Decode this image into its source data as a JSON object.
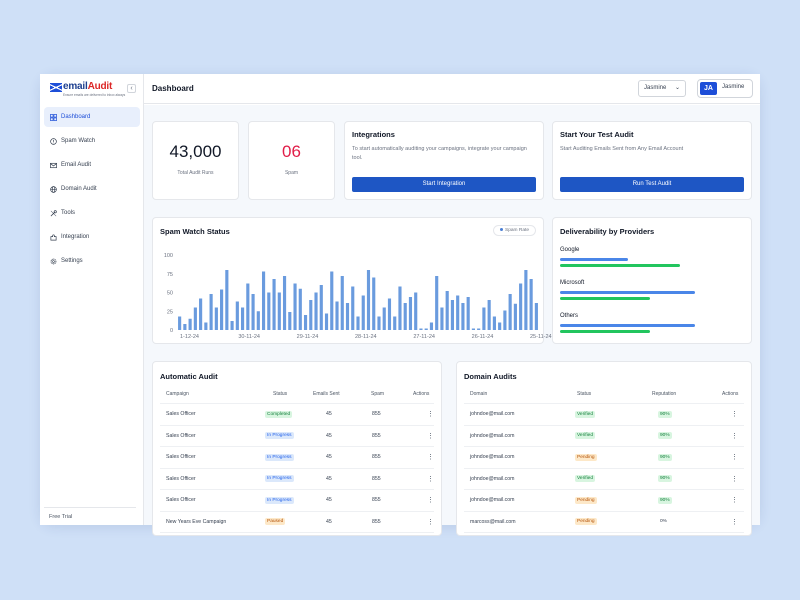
{
  "brand": {
    "name_a": "email",
    "name_b": "Audit",
    "tagline": "Ensure emails are delivered to inbox always"
  },
  "sidebar": {
    "items": [
      {
        "label": "Dashboard",
        "icon": "grid-icon",
        "active": true
      },
      {
        "label": "Spam Watch",
        "icon": "alert-circle-icon"
      },
      {
        "label": "Email Audit",
        "icon": "mail-icon"
      },
      {
        "label": "Domain Audit",
        "icon": "globe-icon"
      },
      {
        "label": "Tools",
        "icon": "tools-icon"
      },
      {
        "label": "Integration",
        "icon": "puzzle-icon"
      },
      {
        "label": "Settings",
        "icon": "gear-icon"
      }
    ],
    "footer": "Free Trial"
  },
  "topbar": {
    "title": "Dashboard",
    "user_select": "Jasmine",
    "avatar_initials": "JA",
    "user_name": "Jasmine"
  },
  "stats": [
    {
      "value": "43,000",
      "label": "Total Audit Runs"
    },
    {
      "value": "06",
      "label": "Spam"
    }
  ],
  "integrations": {
    "title": "Integrations",
    "desc": "To start automatically auditing your campaigns, integrate your campaign tool.",
    "button": "Start Integration"
  },
  "test_audit": {
    "title": "Start Your Test Audit",
    "desc": "Start Auditing Emails Sent from Any Email Account",
    "button": "Run Test Audit"
  },
  "spam_watch": {
    "title": "Spam Watch Status",
    "legend": "Spam Rate"
  },
  "chart_data": {
    "type": "bar",
    "title": "Spam Watch Status",
    "ylim": [
      0,
      100
    ],
    "yticks": [
      0,
      25,
      50,
      75,
      100
    ],
    "xtick_labels": [
      "1-12-24",
      "30-11-24",
      "29-11-24",
      "28-11-24",
      "27-11-24",
      "26-11-24",
      "25-11-24"
    ],
    "series": [
      {
        "name": "Spam Rate",
        "values": [
          18,
          8,
          15,
          30,
          42,
          10,
          48,
          30,
          54,
          80,
          12,
          38,
          30,
          62,
          48,
          25,
          78,
          50,
          68,
          50,
          72,
          24,
          62,
          55,
          20,
          40,
          50,
          60,
          22,
          78,
          38,
          72,
          36,
          58,
          18,
          46,
          80,
          70,
          18,
          30,
          42,
          18,
          58,
          36,
          44,
          50,
          2,
          2,
          10,
          72,
          30,
          52,
          40,
          46,
          36,
          44,
          2,
          2,
          30,
          40,
          18,
          10,
          26,
          48,
          35,
          62,
          80,
          68,
          36
        ]
      }
    ],
    "color": "#6a9bde"
  },
  "deliverability": {
    "title": "Deliverability by Providers",
    "providers": [
      {
        "name": "Google",
        "values": [
          0.45,
          0.8
        ]
      },
      {
        "name": "Microsoft",
        "values": [
          0.9,
          0.6
        ]
      },
      {
        "name": "Others",
        "values": [
          0.9,
          0.6
        ]
      }
    ],
    "colors": [
      "#4a86e8",
      "#22c55e"
    ]
  },
  "automatic_audit": {
    "title": "Automatic Audit",
    "headers": [
      "Campaign",
      "Status",
      "Emails Sent",
      "Spam",
      "Actions"
    ],
    "rows": [
      {
        "campaign": "Sales Officer",
        "status": "Completed",
        "tone": "green",
        "sent": "45",
        "spam": "855"
      },
      {
        "campaign": "Sales Officer",
        "status": "In Progress",
        "tone": "blue",
        "sent": "45",
        "spam": "855"
      },
      {
        "campaign": "Sales Officer",
        "status": "In Progress",
        "tone": "blue",
        "sent": "45",
        "spam": "855"
      },
      {
        "campaign": "Sales Officer",
        "status": "In Progress",
        "tone": "blue",
        "sent": "45",
        "spam": "855"
      },
      {
        "campaign": "Sales Officer",
        "status": "In Progress",
        "tone": "blue",
        "sent": "45",
        "spam": "855"
      },
      {
        "campaign": "New Years Eve Campaign",
        "status": "Paused",
        "tone": "orange",
        "sent": "45",
        "spam": "855"
      }
    ]
  },
  "domain_audits": {
    "title": "Domain Audits",
    "headers": [
      "Domain",
      "Status",
      "Reputation",
      "Actions"
    ],
    "rows": [
      {
        "domain": "johndoe@mail.com",
        "status": "Verified",
        "tone": "green",
        "rep": "90%"
      },
      {
        "domain": "johndoe@mail.com",
        "status": "Verified",
        "tone": "green",
        "rep": "90%"
      },
      {
        "domain": "johndoe@mail.com",
        "status": "Pending",
        "tone": "orange",
        "rep": "90%"
      },
      {
        "domain": "johndoe@mail.com",
        "status": "Verified",
        "tone": "green",
        "rep": "90%"
      },
      {
        "domain": "johndoe@mail.com",
        "status": "Pending",
        "tone": "orange",
        "rep": "90%"
      },
      {
        "domain": "marcoss@mail.com",
        "status": "Pending",
        "tone": "orange",
        "rep": "0%"
      }
    ]
  }
}
